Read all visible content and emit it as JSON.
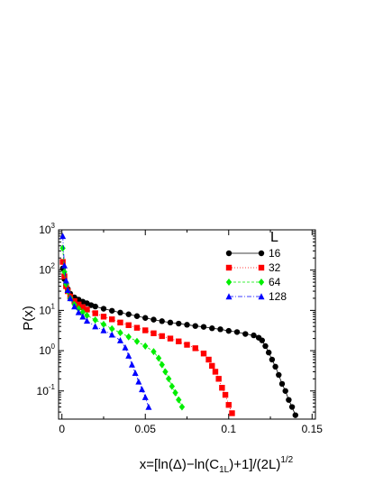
{
  "chart_data": {
    "type": "scatter",
    "title": "",
    "xlabel": "x=[ln(Δ)−ln(C",
    "xlabel_sub": "1L",
    "xlabel_rest": ")+1]/(2L)",
    "xlabel_sup": "1/2",
    "ylabel": "P(x)",
    "xlim": [
      -0.002,
      0.152
    ],
    "ylim": [
      0.02,
      1000
    ],
    "yscale": "log",
    "x_ticks": [
      0,
      0.05,
      0.1,
      0.15
    ],
    "x_tick_labels": [
      "0",
      "0.05",
      "0.1",
      "0.15"
    ],
    "y_ticks": [
      0.1,
      1,
      10,
      100,
      1000
    ],
    "y_tick_bases": [
      "10",
      "10",
      "10",
      "10",
      "10"
    ],
    "y_tick_exps": [
      "-1",
      "0",
      "1",
      "2",
      "3"
    ],
    "grid": false,
    "legend_title": "L",
    "legend_position": "top-right",
    "series": [
      {
        "name": "16",
        "color": "#000000",
        "marker": "circle",
        "x": [
          0.0005,
          0.0015,
          0.0025,
          0.0035,
          0.005,
          0.0075,
          0.01,
          0.0125,
          0.015,
          0.0175,
          0.02,
          0.025,
          0.03,
          0.035,
          0.04,
          0.045,
          0.05,
          0.055,
          0.06,
          0.065,
          0.07,
          0.075,
          0.08,
          0.085,
          0.09,
          0.095,
          0.1,
          0.105,
          0.11,
          0.115,
          0.118,
          0.12,
          0.122,
          0.124,
          0.126,
          0.128,
          0.13,
          0.132,
          0.134,
          0.136,
          0.138,
          0.14
        ],
        "y": [
          110,
          60,
          42,
          34,
          26,
          21,
          18.5,
          16.5,
          15,
          13.5,
          12.5,
          11,
          9.8,
          8.8,
          8,
          7.2,
          6.5,
          5.9,
          5.4,
          5,
          4.7,
          4.4,
          4.1,
          3.9,
          3.6,
          3.4,
          3.1,
          2.9,
          2.6,
          2.4,
          2.1,
          1.8,
          1.3,
          0.9,
          0.6,
          0.4,
          0.25,
          0.15,
          0.1,
          0.06,
          0.04,
          0.025
        ]
      },
      {
        "name": "32",
        "color": "#ff0000",
        "marker": "square",
        "x": [
          0.0005,
          0.0015,
          0.0025,
          0.0035,
          0.005,
          0.0075,
          0.01,
          0.0125,
          0.015,
          0.02,
          0.025,
          0.03,
          0.035,
          0.04,
          0.045,
          0.05,
          0.055,
          0.06,
          0.065,
          0.07,
          0.075,
          0.08,
          0.085,
          0.088,
          0.09,
          0.092,
          0.094,
          0.096,
          0.098,
          0.1,
          0.102
        ],
        "y": [
          160,
          70,
          40,
          30,
          22,
          17,
          14,
          12,
          10.5,
          8.5,
          7,
          6,
          5,
          4.3,
          3.7,
          3.2,
          2.7,
          2.3,
          2,
          1.7,
          1.4,
          1.15,
          0.85,
          0.6,
          0.42,
          0.3,
          0.2,
          0.12,
          0.08,
          0.045,
          0.028
        ]
      },
      {
        "name": "64",
        "color": "#00ee00",
        "marker": "diamond",
        "x": [
          0.0005,
          0.0015,
          0.0025,
          0.0035,
          0.005,
          0.0075,
          0.01,
          0.0125,
          0.015,
          0.02,
          0.025,
          0.03,
          0.035,
          0.04,
          0.045,
          0.05,
          0.055,
          0.058,
          0.06,
          0.062,
          0.064,
          0.066,
          0.068,
          0.07,
          0.072
        ],
        "y": [
          350,
          90,
          45,
          30,
          20,
          14,
          11,
          9,
          7.5,
          5.8,
          4.5,
          3.5,
          2.8,
          2.2,
          1.7,
          1.3,
          0.95,
          0.65,
          0.45,
          0.3,
          0.2,
          0.13,
          0.09,
          0.06,
          0.04
        ]
      },
      {
        "name": "128",
        "color": "#0000ff",
        "marker": "triangle",
        "x": [
          0.0005,
          0.0015,
          0.0025,
          0.0035,
          0.005,
          0.0075,
          0.01,
          0.0125,
          0.015,
          0.02,
          0.025,
          0.03,
          0.035,
          0.038,
          0.04,
          0.042,
          0.044,
          0.046,
          0.048,
          0.05,
          0.052
        ],
        "y": [
          700,
          130,
          55,
          32,
          20,
          12.5,
          9,
          7,
          5.5,
          4,
          3.2,
          2.5,
          1.8,
          1.2,
          0.75,
          0.45,
          0.28,
          0.17,
          0.11,
          0.07,
          0.04
        ]
      }
    ]
  }
}
